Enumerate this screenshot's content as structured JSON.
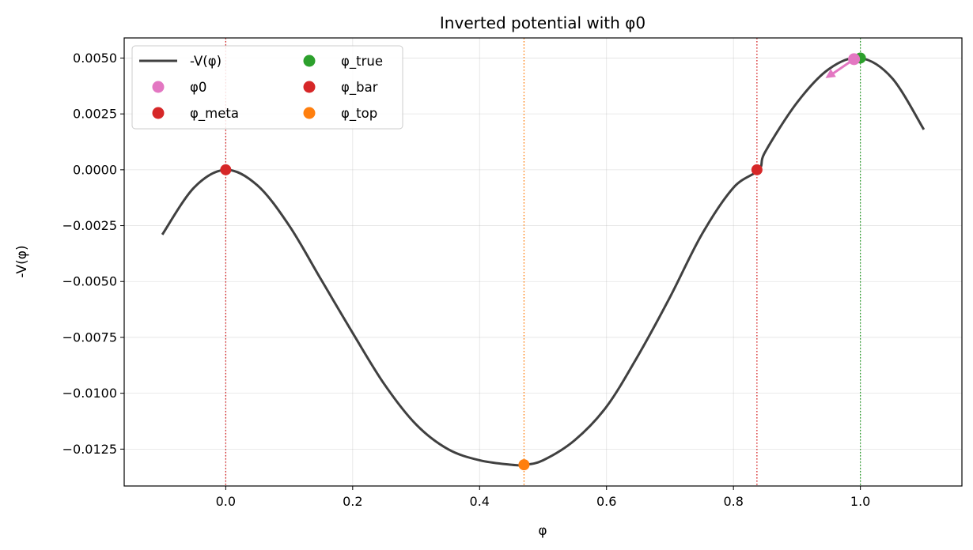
{
  "chart_data": {
    "type": "line",
    "title": "Inverted potential with φ0",
    "xlabel": "φ",
    "ylabel": "-V(φ)",
    "xlim": [
      -0.16,
      1.16
    ],
    "ylim": [
      -0.01415,
      0.0059
    ],
    "x_ticks": [
      0.0,
      0.2,
      0.4,
      0.6,
      0.8,
      1.0
    ],
    "x_tick_labels": [
      "0.0",
      "0.2",
      "0.4",
      "0.6",
      "0.8",
      "1.0"
    ],
    "y_ticks": [
      0.005,
      0.0025,
      0.0,
      -0.0025,
      -0.005,
      -0.0075,
      -0.01,
      -0.0125
    ],
    "y_tick_labels": [
      "0.0050",
      "0.0025",
      "0.0000",
      "−0.0025",
      "−0.0050",
      "−0.0075",
      "−0.0100",
      "−0.0125"
    ],
    "grid": true,
    "legend_position": "top-left",
    "legend_columns": 2,
    "curve": {
      "name": "-V(φ)",
      "color": "#404040",
      "x": [
        -0.1,
        -0.05,
        0.0,
        0.05,
        0.1,
        0.15,
        0.2,
        0.25,
        0.3,
        0.35,
        0.4,
        0.45,
        0.47,
        0.5,
        0.55,
        0.6,
        0.65,
        0.7,
        0.75,
        0.8,
        0.84,
        0.85,
        0.9,
        0.95,
        1.0,
        1.05,
        1.1
      ],
      "y": [
        -0.0029,
        -0.0008,
        0.0,
        -0.0007,
        -0.0025,
        -0.0049,
        -0.0073,
        -0.0096,
        -0.0114,
        -0.0125,
        -0.013,
        -0.0132,
        -0.0132,
        -0.013,
        -0.0121,
        -0.0106,
        -0.0083,
        -0.0057,
        -0.0029,
        -0.0008,
        0.0,
        0.0008,
        0.003,
        0.0045,
        0.005,
        0.0041,
        0.0018
      ]
    },
    "points": [
      {
        "name": "φ0",
        "x": 0.99,
        "y": 0.00495,
        "color": "#e377c2",
        "arrow_to": {
          "x": 0.945,
          "y": 0.0041
        }
      },
      {
        "name": "φ_meta",
        "x": 0.0,
        "y": 0.0,
        "color": "#d62728",
        "vline": true
      },
      {
        "name": "φ_true",
        "x": 1.0,
        "y": 0.005,
        "color": "#2ca02c",
        "vline": true
      },
      {
        "name": "φ_bar",
        "x": 0.837,
        "y": 0.0,
        "color": "#d62728",
        "vline": true
      },
      {
        "name": "φ_top",
        "x": 0.47,
        "y": -0.0132,
        "color": "#ff7f0e",
        "vline": true
      }
    ],
    "legend": [
      {
        "label": "-V(φ)",
        "kind": "line",
        "color": "#404040"
      },
      {
        "label": "φ0",
        "kind": "dot",
        "color": "#e377c2"
      },
      {
        "label": "φ_meta",
        "kind": "dot",
        "color": "#d62728"
      },
      {
        "label": "φ_true",
        "kind": "dot",
        "color": "#2ca02c"
      },
      {
        "label": "φ_bar",
        "kind": "dot",
        "color": "#d62728"
      },
      {
        "label": "φ_top",
        "kind": "dot",
        "color": "#ff7f0e"
      }
    ]
  }
}
